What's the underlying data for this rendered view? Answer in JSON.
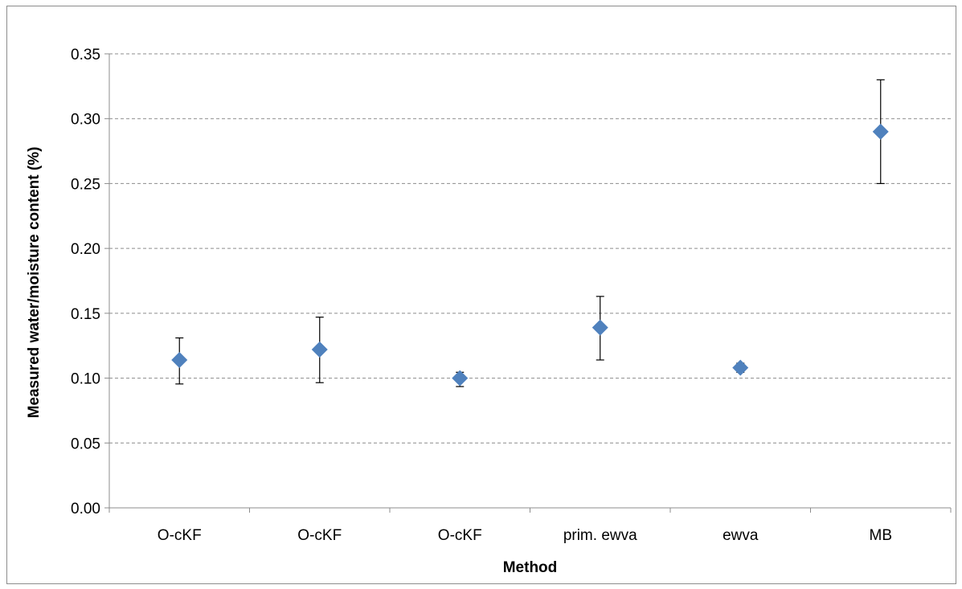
{
  "chart_data": {
    "type": "scatter",
    "title": "",
    "xlabel": "Method",
    "ylabel": "Measured water/moisture content (%)",
    "categories": [
      "O-cKF",
      "O-cKF",
      "O-cKF",
      "prim. ewva",
      "ewva",
      "MB"
    ],
    "ylim": [
      0,
      0.35
    ],
    "yticks": [
      0.0,
      0.05,
      0.1,
      0.15,
      0.2,
      0.25,
      0.3,
      0.35
    ],
    "ytick_labels": [
      "0.00",
      "0.05",
      "0.10",
      "0.15",
      "0.20",
      "0.25",
      "0.30",
      "0.35"
    ],
    "grid": true,
    "legend": "none",
    "series": [
      {
        "values": [
          0.114,
          0.122,
          0.1,
          0.139,
          0.108,
          0.29
        ],
        "error_low": [
          0.0955,
          0.0965,
          0.0935,
          0.114,
          0.1045,
          0.25
        ],
        "error_high": [
          0.131,
          0.147,
          0.1045,
          0.163,
          0.1115,
          0.33
        ],
        "marker": "diamond",
        "color": "#4f81bd"
      }
    ]
  }
}
